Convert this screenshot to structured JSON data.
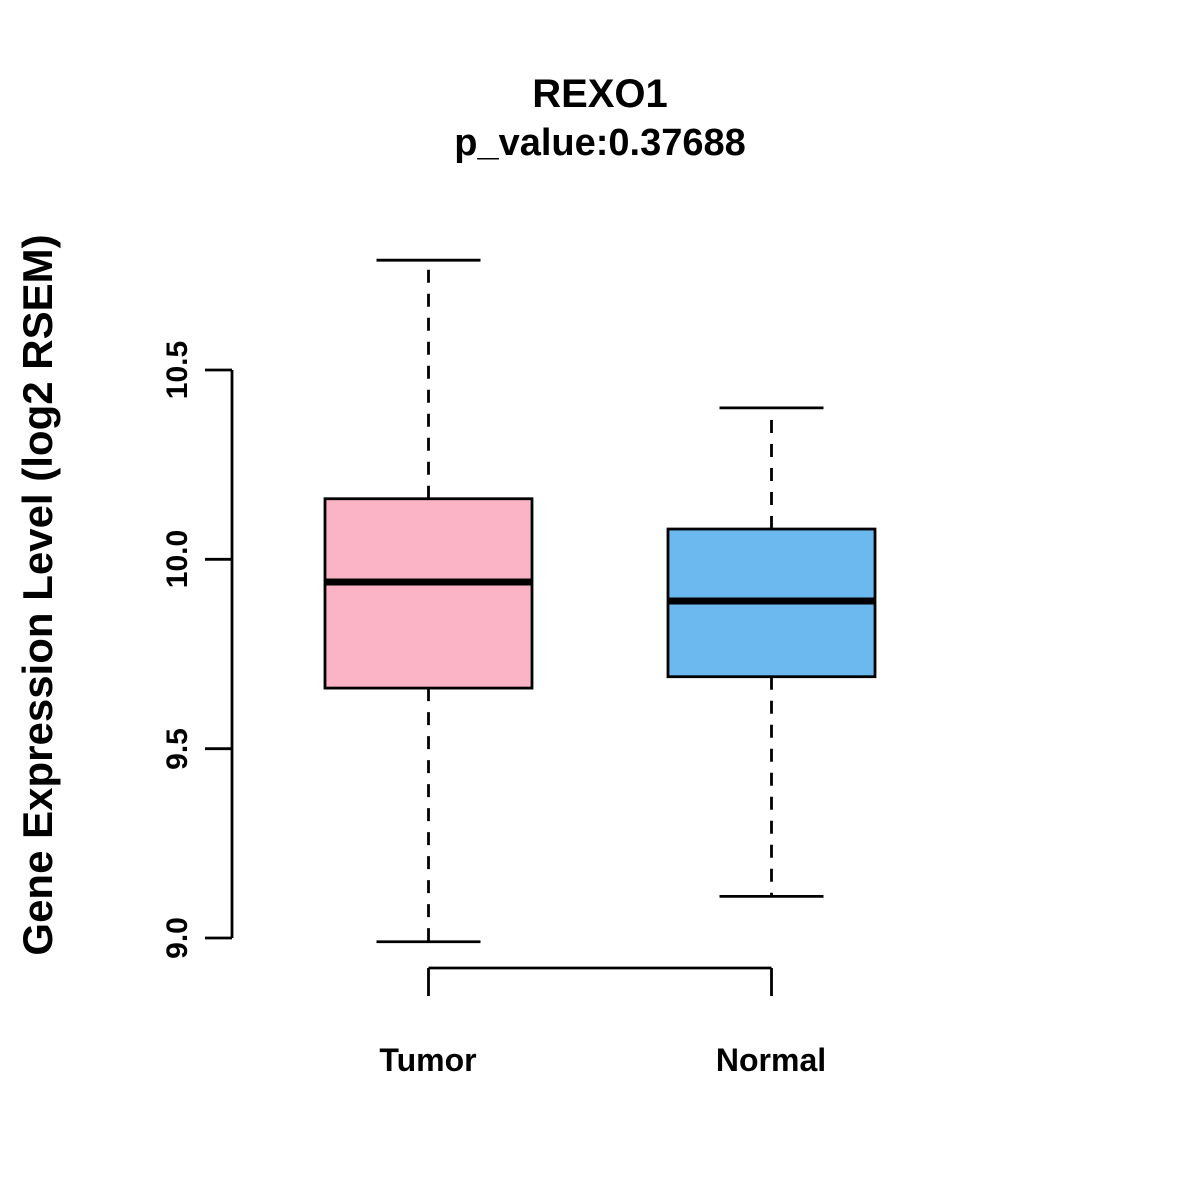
{
  "chart_data": {
    "type": "boxplot",
    "title": "REXO1",
    "subtitle": "p_value:0.37688",
    "ylabel": "Gene Expression Level (log2 RSEM)",
    "yticks": [
      9.0,
      9.5,
      10.0,
      10.5
    ],
    "ytick_labels": [
      "9.0",
      "9.5",
      "10.0",
      "10.5"
    ],
    "ylim": [
      9.0,
      10.5
    ],
    "grid": false,
    "groups": [
      {
        "label": "Tumor",
        "color": "#FBB4C6",
        "whisker_low": 8.99,
        "q1": 9.66,
        "median": 9.94,
        "q3": 10.16,
        "whisker_high": 10.79
      },
      {
        "label": "Normal",
        "color": "#6CB9EF",
        "whisker_low": 9.11,
        "q1": 9.69,
        "median": 9.89,
        "q3": 10.08,
        "whisker_high": 10.4
      }
    ]
  }
}
